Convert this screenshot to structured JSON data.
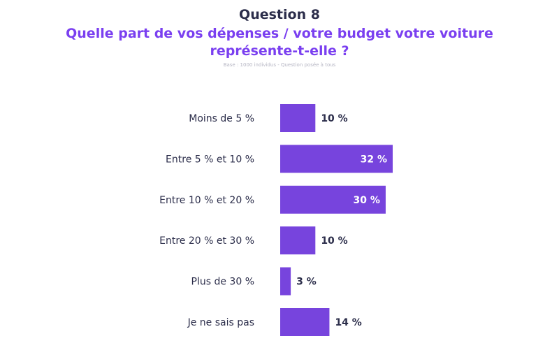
{
  "header": {
    "question_number": "Question 8",
    "question_text": "Quelle part de vos dépenses / votre budget votre voiture représente-t-elle ?",
    "base_note": "Base : 1000 individus - Question posée à tous"
  },
  "colors": {
    "bar": "#7744dd",
    "label_dark": "#2b2d4a",
    "title_accent": "#7a3ff0"
  },
  "chart_data": {
    "type": "bar",
    "orientation": "horizontal",
    "categories": [
      "Moins de 5 %",
      "Entre 5 % et 10 %",
      "Entre 10 % et 20 %",
      "Entre 20 % et 30 %",
      "Plus de 30 %",
      "Je ne sais pas"
    ],
    "values": [
      10,
      32,
      30,
      10,
      3,
      14
    ],
    "value_labels": [
      "10 %",
      "32 %",
      "30 %",
      "10 %",
      "3 %",
      "14 %"
    ],
    "xlim": [
      0,
      32
    ],
    "grid": false,
    "legend": "none"
  }
}
